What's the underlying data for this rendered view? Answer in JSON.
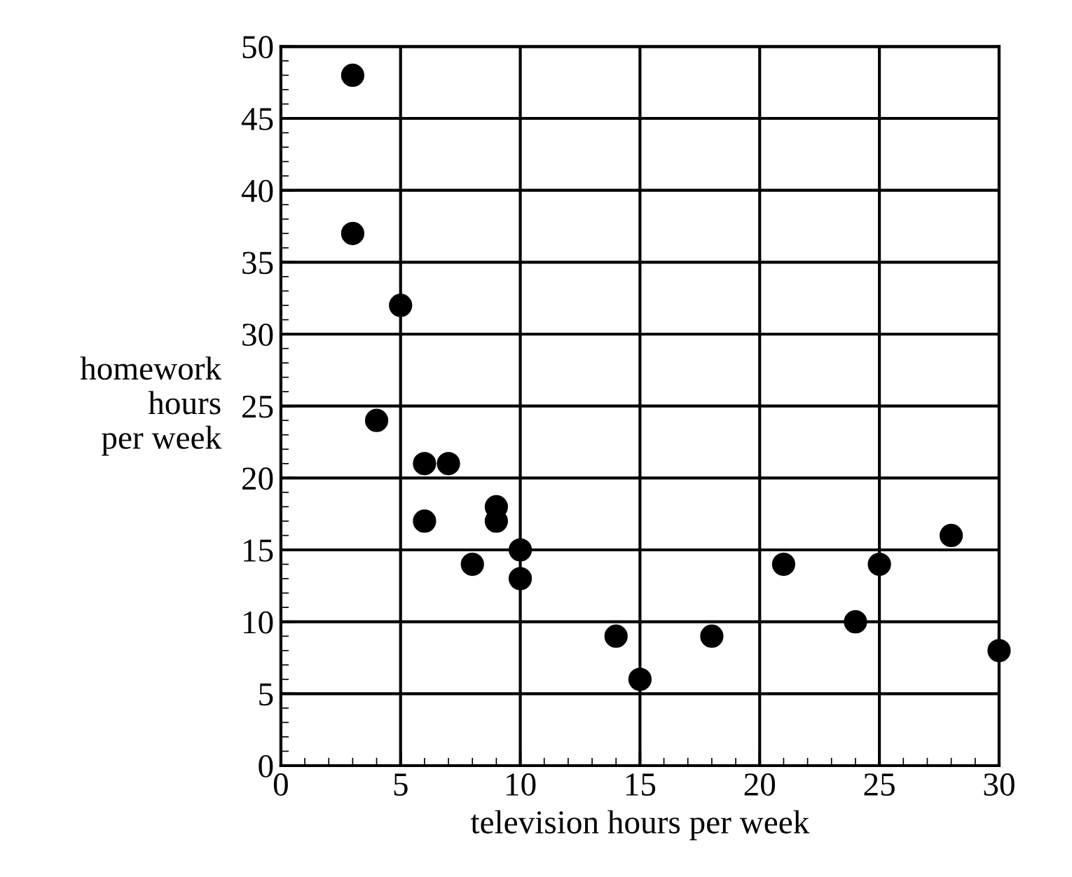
{
  "chart_data": {
    "type": "scatter",
    "xlabel": "television hours per week",
    "ylabel": "homework\nhours\nper week",
    "x": [
      3,
      3,
      5,
      4,
      6,
      7,
      6,
      9,
      9,
      8,
      10,
      10,
      14,
      15,
      18,
      21,
      24,
      25,
      28,
      30
    ],
    "values": [
      48,
      37,
      32,
      24,
      21,
      21,
      17,
      18,
      17,
      14,
      15,
      13,
      9,
      6,
      9,
      14,
      10,
      14,
      16,
      8
    ],
    "color": "#000000",
    "marker": "circle",
    "grid": true,
    "xlim": [
      0,
      30
    ],
    "xticks": [
      0,
      5,
      10,
      15,
      20,
      25,
      30
    ],
    "ylim": [
      0,
      50
    ],
    "yticks": [
      0,
      5,
      10,
      15,
      20,
      25,
      30,
      35,
      40,
      45,
      50
    ]
  }
}
